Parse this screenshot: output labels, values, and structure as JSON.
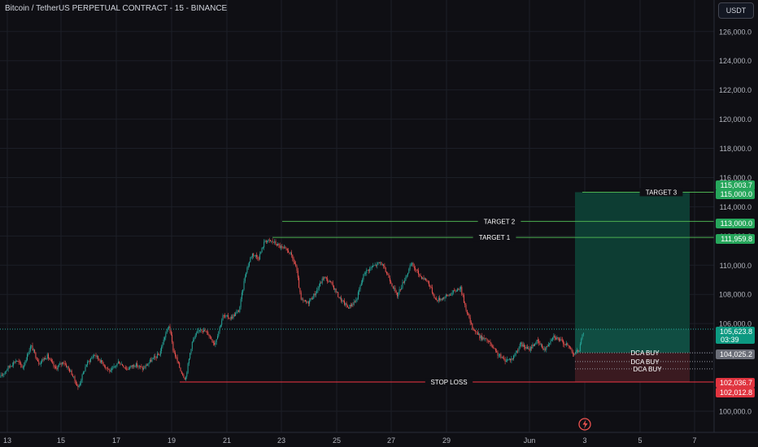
{
  "header": {
    "title": "Bitcoin / TetherUS PERPETUAL CONTRACT - 15 - BINANCE",
    "currency": "USDT"
  },
  "colors": {
    "background": "#0f0f14",
    "up": "#26a69a",
    "down": "#ef5350",
    "target_zone": "#0d3d33",
    "stop_zone": "#3a1a20",
    "target_line": "#4caf50",
    "stop_line": "#f23645",
    "grid": "#1c1f27"
  },
  "flash_icon": "flash-icon",
  "chart_data": {
    "type": "candlestick",
    "x_ticks": [
      "13",
      "15",
      "17",
      "19",
      "21",
      "23",
      "25",
      "27",
      "29",
      "Jun",
      "3",
      "5",
      "7"
    ],
    "y_ticks": [
      "100,000.0",
      "102,000.0",
      "104,000.0",
      "106,000.0",
      "108,000.0",
      "110,000.0",
      "112,000.0",
      "114,000.0",
      "116,000.0",
      "118,000.0",
      "120,000.0",
      "122,000.0",
      "124,000.0",
      "126,000.0"
    ],
    "ylim": [
      99500,
      127500
    ],
    "price_path": [
      [
        0,
        102300
      ],
      [
        10,
        103000
      ],
      [
        20,
        103500
      ],
      [
        28,
        103000
      ],
      [
        38,
        104500
      ],
      [
        48,
        103300
      ],
      [
        58,
        103800
      ],
      [
        68,
        102900
      ],
      [
        78,
        103400
      ],
      [
        88,
        102600
      ],
      [
        96,
        101600
      ],
      [
        106,
        103200
      ],
      [
        116,
        103900
      ],
      [
        126,
        103300
      ],
      [
        136,
        102700
      ],
      [
        146,
        103400
      ],
      [
        156,
        102900
      ],
      [
        166,
        103200
      ],
      [
        176,
        102900
      ],
      [
        186,
        103500
      ],
      [
        196,
        103900
      ],
      [
        203,
        105200
      ],
      [
        208,
        105900
      ],
      [
        213,
        104200
      ],
      [
        222,
        102800
      ],
      [
        228,
        102200
      ],
      [
        236,
        104700
      ],
      [
        246,
        105700
      ],
      [
        256,
        105300
      ],
      [
        264,
        104600
      ],
      [
        274,
        106500
      ],
      [
        284,
        106400
      ],
      [
        294,
        106900
      ],
      [
        302,
        109500
      ],
      [
        310,
        110800
      ],
      [
        318,
        110500
      ],
      [
        326,
        111700
      ],
      [
        336,
        111600
      ],
      [
        346,
        111200
      ],
      [
        356,
        110900
      ],
      [
        364,
        109900
      ],
      [
        370,
        107600
      ],
      [
        378,
        107400
      ],
      [
        388,
        108100
      ],
      [
        398,
        109200
      ],
      [
        408,
        108700
      ],
      [
        418,
        107700
      ],
      [
        428,
        107100
      ],
      [
        438,
        107600
      ],
      [
        448,
        109500
      ],
      [
        458,
        109900
      ],
      [
        468,
        110200
      ],
      [
        478,
        109200
      ],
      [
        488,
        107900
      ],
      [
        498,
        109100
      ],
      [
        506,
        110100
      ],
      [
        516,
        109300
      ],
      [
        526,
        108900
      ],
      [
        536,
        107600
      ],
      [
        546,
        107800
      ],
      [
        556,
        108100
      ],
      [
        566,
        108500
      ],
      [
        572,
        107200
      ],
      [
        580,
        105800
      ],
      [
        590,
        105100
      ],
      [
        600,
        104800
      ],
      [
        610,
        104000
      ],
      [
        620,
        103500
      ],
      [
        630,
        103600
      ],
      [
        640,
        104600
      ],
      [
        650,
        104200
      ],
      [
        660,
        104800
      ],
      [
        670,
        104200
      ],
      [
        680,
        105200
      ],
      [
        690,
        104800
      ],
      [
        700,
        104400
      ],
      [
        706,
        103900
      ],
      [
        712,
        104200
      ],
      [
        718,
        105600
      ]
    ],
    "levels": [
      {
        "label": "TARGET 3",
        "value": 115000
      },
      {
        "label": "TARGET 2",
        "value": 113000
      },
      {
        "label": "TARGET 1",
        "value": 111900
      },
      {
        "label": "DCA BUY",
        "value": 104000
      },
      {
        "label": "DCA BUY",
        "value": 103400
      },
      {
        "label": "DCA BUY",
        "value": 102900
      },
      {
        "label": "STOP LOSS",
        "value": 102000
      }
    ],
    "price_tags": [
      {
        "text": "115,003.7",
        "value": 115003.7,
        "kind": "target"
      },
      {
        "text": "115,000.0",
        "value": 115000,
        "kind": "target"
      },
      {
        "text": "113,000.0",
        "value": 113000,
        "kind": "target"
      },
      {
        "text": "111,959.8",
        "value": 111959.8,
        "kind": "target"
      },
      {
        "text": "105,623.8",
        "sub": "03:39",
        "value": 105623.8,
        "kind": "current"
      },
      {
        "text": "104,025.2",
        "value": 104025.2,
        "kind": "dca"
      },
      {
        "text": "102,036.7",
        "value": 102036.7,
        "kind": "stop"
      },
      {
        "text": "102,012.8",
        "value": 102012.8,
        "kind": "stop"
      }
    ],
    "position": {
      "entry": 104000,
      "target": 115000,
      "stop": 102000,
      "current": 105623.8
    }
  }
}
